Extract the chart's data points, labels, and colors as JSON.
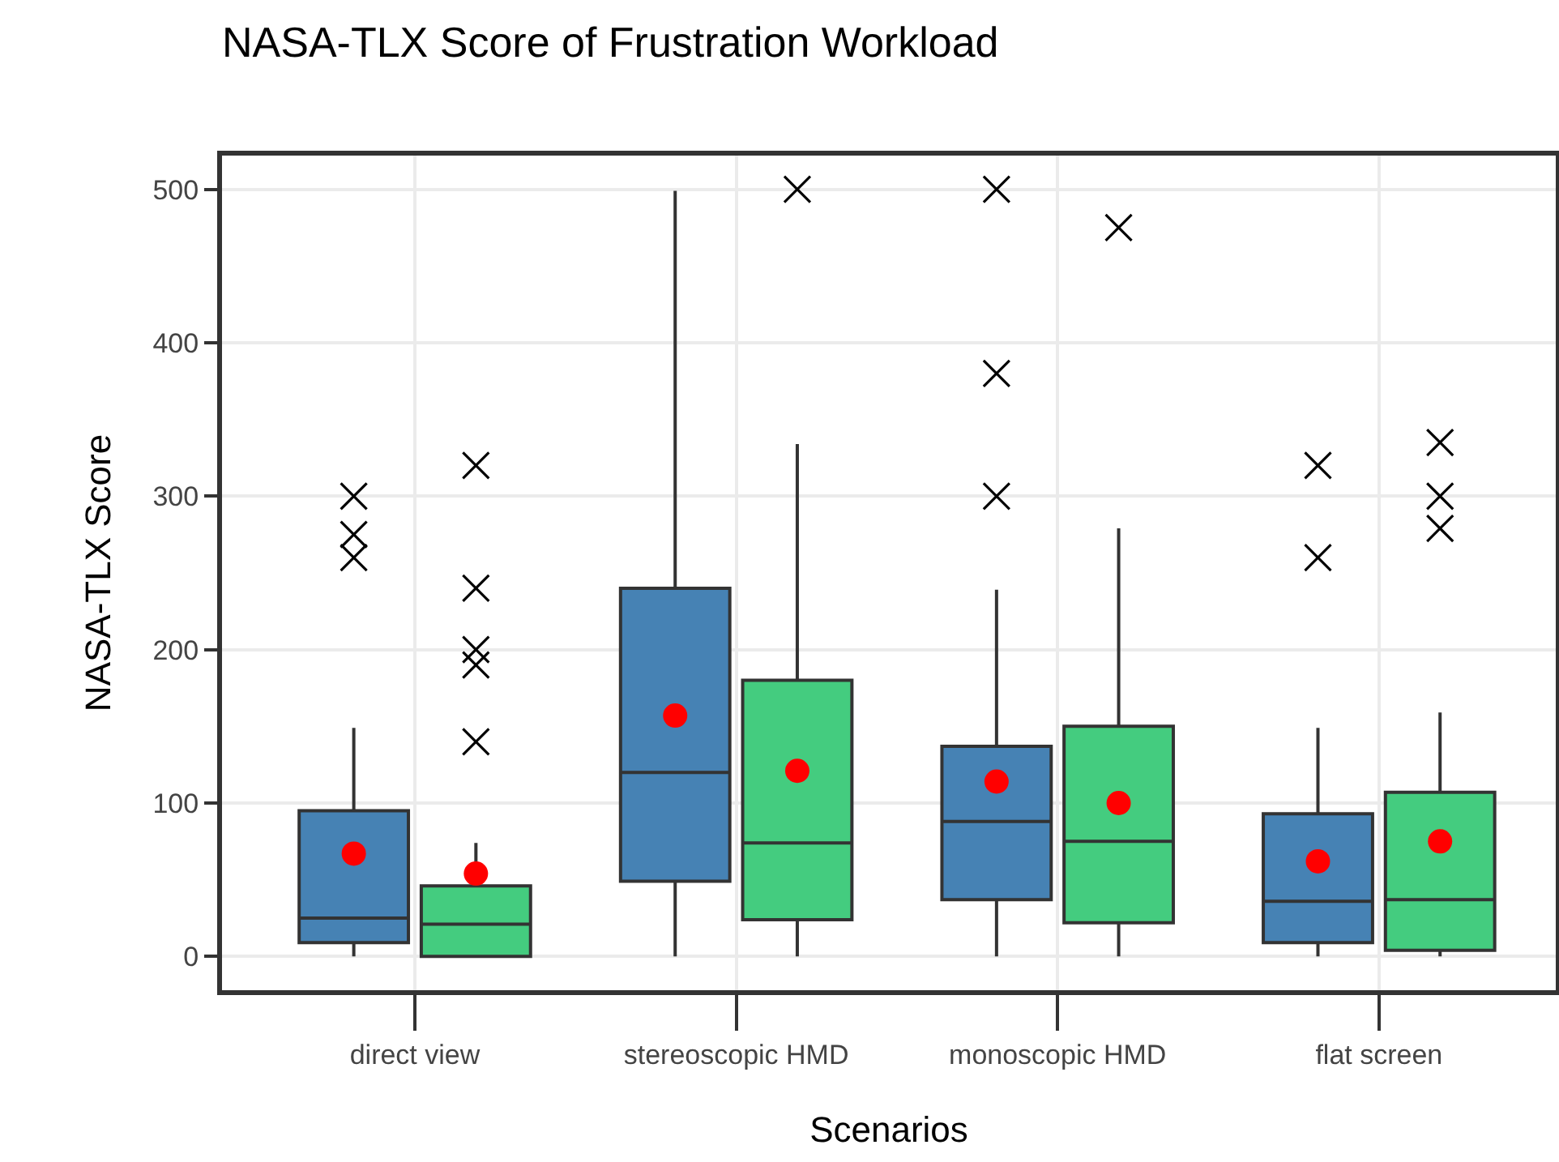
{
  "chart_data": {
    "type": "box",
    "title": "NASA-TLX Score of Frustration Workload",
    "xlabel": "Scenarios",
    "ylabel": "NASA-TLX Score",
    "categories": [
      "direct view",
      "stereoscopic HMD",
      "monoscopic HMD",
      "flat screen"
    ],
    "ylim": [
      -22,
      522
    ],
    "yticks": [
      0,
      100,
      200,
      300,
      400,
      500
    ],
    "grid": true,
    "series": [
      {
        "color": "#4682b4",
        "boxes": [
          {
            "low": 0,
            "q1": 9,
            "median": 25,
            "q3": 95,
            "high": 149,
            "mean": 67,
            "outliers": [
              300,
              275,
              260
            ]
          },
          {
            "low": 0,
            "q1": 49,
            "median": 120,
            "q3": 240,
            "high": 499,
            "mean": 157
          },
          {
            "low": 0,
            "q1": 37,
            "median": 88,
            "q3": 137,
            "high": 239,
            "mean": 114,
            "outliers": [
              500,
              380,
              300
            ]
          },
          {
            "low": 0,
            "q1": 9,
            "median": 36,
            "q3": 93,
            "high": 149,
            "mean": 62,
            "outliers": [
              320,
              260
            ]
          }
        ]
      },
      {
        "color": "#44cc7f",
        "boxes": [
          {
            "low": 0,
            "q1": 0,
            "median": 21,
            "q3": 46,
            "high": 74,
            "mean": 54,
            "outliers": [
              320,
              240,
              200,
              190,
              140
            ]
          },
          {
            "low": 0,
            "q1": 24,
            "median": 74,
            "q3": 180,
            "high": 334,
            "mean": 121,
            "outliers": [
              500
            ]
          },
          {
            "low": 0,
            "q1": 22,
            "median": 75,
            "q3": 150,
            "high": 279,
            "mean": 100,
            "outliers": [
              475
            ]
          },
          {
            "low": 0,
            "q1": 4,
            "median": 37,
            "q3": 107,
            "high": 159,
            "mean": 75,
            "outliers": [
              335,
              300,
              279
            ]
          }
        ]
      }
    ]
  }
}
